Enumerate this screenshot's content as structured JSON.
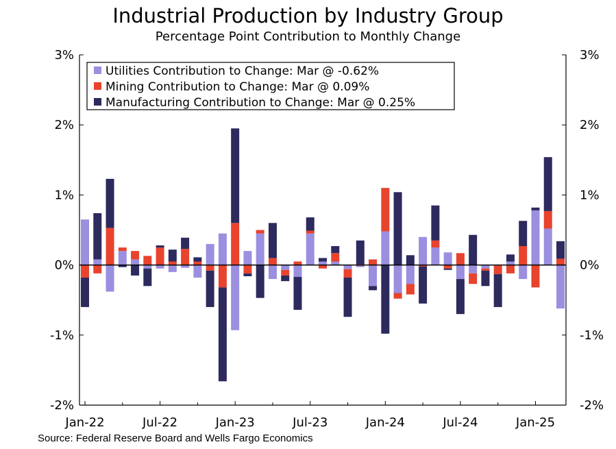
{
  "title": "Industrial Production by Industry Group",
  "subtitle": "Percentage Point Contribution to Monthly Change",
  "source": "Source: Federal Reserve Board and Wells Fargo Economics",
  "chart_data": {
    "type": "bar",
    "stacked": true,
    "ylim": [
      -2,
      3
    ],
    "yticks": [
      -2,
      -1,
      0,
      1,
      2,
      3
    ],
    "ytick_labels": [
      "-2%",
      "-1%",
      "0%",
      "1%",
      "2%",
      "3%"
    ],
    "xtick_labels": [
      "Jan-22",
      "Jul-22",
      "Jan-23",
      "Jul-23",
      "Jan-24",
      "Jul-24",
      "Jan-25"
    ],
    "xtick_indices": [
      0,
      6,
      12,
      18,
      24,
      30,
      36
    ],
    "categories": [
      "Jan-22",
      "Feb-22",
      "Mar-22",
      "Apr-22",
      "May-22",
      "Jun-22",
      "Jul-22",
      "Aug-22",
      "Sep-22",
      "Oct-22",
      "Nov-22",
      "Dec-22",
      "Jan-23",
      "Feb-23",
      "Mar-23",
      "Apr-23",
      "May-23",
      "Jun-23",
      "Jul-23",
      "Aug-23",
      "Sep-23",
      "Oct-23",
      "Nov-23",
      "Dec-23",
      "Jan-24",
      "Feb-24",
      "Mar-24",
      "Apr-24",
      "May-24",
      "Jun-24",
      "Jul-24",
      "Aug-24",
      "Sep-24",
      "Oct-24",
      "Nov-24",
      "Dec-24",
      "Jan-25",
      "Feb-25",
      "Mar-25"
    ],
    "legend_position": "top-left",
    "series": [
      {
        "name": "Utilities Contribution to Change: Mar @ -0.62%",
        "color": "#9b8fe0",
        "values": [
          0.65,
          0.08,
          -0.38,
          0.2,
          0.08,
          -0.05,
          -0.05,
          -0.1,
          -0.04,
          -0.18,
          0.3,
          0.45,
          -0.93,
          0.2,
          0.45,
          -0.2,
          -0.07,
          -0.17,
          0.45,
          0.05,
          0.05,
          -0.06,
          -0.03,
          -0.3,
          0.48,
          -0.4,
          -0.27,
          0.4,
          0.25,
          0.18,
          -0.2,
          -0.12,
          -0.05,
          -0.01,
          0.05,
          -0.2,
          0.78,
          0.52,
          -0.62
        ]
      },
      {
        "name": "Mining Contribution to Change: Mar @ 0.09%",
        "color": "#e8432d",
        "values": [
          -0.18,
          -0.12,
          0.53,
          0.05,
          0.12,
          0.13,
          0.25,
          0.05,
          0.23,
          0.05,
          -0.08,
          -0.32,
          0.6,
          -0.12,
          0.05,
          0.1,
          -0.08,
          0.05,
          0.04,
          -0.05,
          0.12,
          -0.12,
          0.01,
          0.08,
          0.62,
          -0.08,
          -0.15,
          -0.02,
          0.1,
          -0.05,
          0.17,
          -0.15,
          -0.03,
          -0.12,
          -0.12,
          0.27,
          -0.32,
          0.25,
          0.09
        ]
      },
      {
        "name": "Manufacturing Contribution to Change: Mar @ 0.25%",
        "color": "#2d2a5e",
        "values": [
          -0.42,
          0.66,
          0.7,
          -0.03,
          -0.15,
          -0.25,
          0.03,
          0.17,
          0.16,
          0.06,
          -0.52,
          -1.34,
          1.35,
          -0.04,
          -0.47,
          0.5,
          -0.08,
          -0.47,
          0.19,
          0.05,
          0.1,
          -0.56,
          0.34,
          -0.06,
          -0.98,
          1.04,
          0.14,
          -0.53,
          0.5,
          -0.02,
          -0.5,
          0.43,
          -0.22,
          -0.47,
          0.1,
          0.36,
          0.04,
          0.77,
          0.25
        ]
      }
    ]
  }
}
